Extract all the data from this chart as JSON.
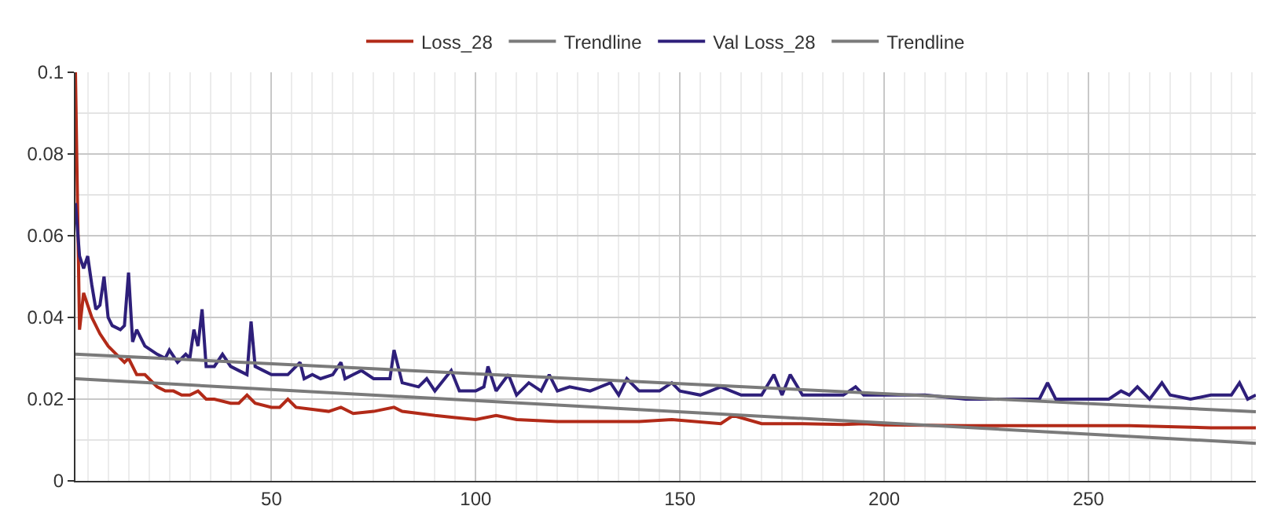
{
  "chart_data": {
    "type": "line",
    "xlim": [
      2,
      291
    ],
    "ylim": [
      0,
      0.1
    ],
    "xticks": [
      50,
      100,
      150,
      200,
      250
    ],
    "yticks": [
      0,
      0.02,
      0.04,
      0.06,
      0.08,
      0.1
    ],
    "grid": true,
    "legend": "top",
    "marker": "none",
    "line_style": "solid",
    "series": [
      {
        "name": "Loss_28",
        "color": "#b22a18",
        "x": [
          2,
          3,
          4,
          6,
          8,
          10,
          12,
          14,
          15,
          17,
          19,
          20,
          22,
          24,
          26,
          28,
          30,
          32,
          34,
          36,
          40,
          42,
          44,
          46,
          50,
          52,
          54,
          56,
          60,
          64,
          67,
          70,
          75,
          80,
          82,
          90,
          95,
          100,
          105,
          110,
          120,
          130,
          140,
          148,
          160,
          163,
          170,
          180,
          190,
          195,
          200,
          220,
          240,
          260,
          280,
          291
        ],
        "values": [
          0.1,
          0.037,
          0.046,
          0.04,
          0.036,
          0.033,
          0.031,
          0.029,
          0.03,
          0.026,
          0.026,
          0.025,
          0.023,
          0.022,
          0.022,
          0.021,
          0.021,
          0.022,
          0.02,
          0.02,
          0.019,
          0.019,
          0.021,
          0.019,
          0.018,
          0.018,
          0.02,
          0.018,
          0.0175,
          0.017,
          0.018,
          0.0165,
          0.017,
          0.018,
          0.017,
          0.016,
          0.0155,
          0.015,
          0.016,
          0.015,
          0.0145,
          0.0145,
          0.0145,
          0.015,
          0.014,
          0.016,
          0.014,
          0.014,
          0.0138,
          0.014,
          0.0137,
          0.0135,
          0.0135,
          0.0135,
          0.013,
          0.013
        ]
      },
      {
        "name": "Trendline",
        "color": "#7a7a7a",
        "x": [
          2,
          291
        ],
        "values": [
          0.025,
          0.0092
        ]
      },
      {
        "name": "Val Loss_28",
        "color": "#2e1f7a",
        "x": [
          2,
          3,
          4,
          5,
          6,
          7,
          8,
          9,
          10,
          11,
          13,
          14,
          15,
          16,
          17,
          19,
          22,
          24,
          25,
          27,
          29,
          30,
          31,
          32,
          33,
          34,
          36,
          38,
          40,
          42,
          44,
          45,
          46,
          48,
          50,
          54,
          57,
          58,
          60,
          62,
          65,
          67,
          68,
          70,
          72,
          75,
          79,
          80,
          82,
          86,
          88,
          90,
          94,
          96,
          100,
          102,
          103,
          105,
          108,
          110,
          113,
          116,
          118,
          120,
          123,
          128,
          133,
          135,
          137,
          140,
          145,
          148,
          150,
          155,
          160,
          165,
          170,
          173,
          175,
          177,
          180,
          185,
          190,
          193,
          195,
          200,
          210,
          220,
          230,
          238,
          240,
          242,
          250,
          255,
          258,
          260,
          262,
          265,
          268,
          270,
          275,
          280,
          285,
          287,
          289,
          291
        ],
        "values": [
          0.068,
          0.055,
          0.052,
          0.055,
          0.048,
          0.042,
          0.043,
          0.05,
          0.04,
          0.038,
          0.037,
          0.038,
          0.051,
          0.034,
          0.037,
          0.033,
          0.031,
          0.03,
          0.032,
          0.029,
          0.031,
          0.03,
          0.037,
          0.033,
          0.042,
          0.028,
          0.028,
          0.031,
          0.028,
          0.027,
          0.026,
          0.039,
          0.028,
          0.027,
          0.026,
          0.026,
          0.029,
          0.025,
          0.026,
          0.025,
          0.026,
          0.029,
          0.025,
          0.026,
          0.027,
          0.025,
          0.025,
          0.032,
          0.024,
          0.023,
          0.025,
          0.022,
          0.027,
          0.022,
          0.022,
          0.023,
          0.028,
          0.022,
          0.026,
          0.021,
          0.024,
          0.022,
          0.026,
          0.022,
          0.023,
          0.022,
          0.024,
          0.021,
          0.025,
          0.022,
          0.022,
          0.024,
          0.022,
          0.021,
          0.023,
          0.021,
          0.021,
          0.026,
          0.021,
          0.026,
          0.021,
          0.021,
          0.021,
          0.023,
          0.021,
          0.021,
          0.021,
          0.02,
          0.02,
          0.02,
          0.024,
          0.02,
          0.02,
          0.02,
          0.022,
          0.021,
          0.023,
          0.02,
          0.024,
          0.021,
          0.02,
          0.021,
          0.021,
          0.024,
          0.02,
          0.021
        ]
      },
      {
        "name": "Trendline",
        "color": "#7a7a7a",
        "x": [
          2,
          291
        ],
        "values": [
          0.031,
          0.0169
        ]
      }
    ]
  }
}
